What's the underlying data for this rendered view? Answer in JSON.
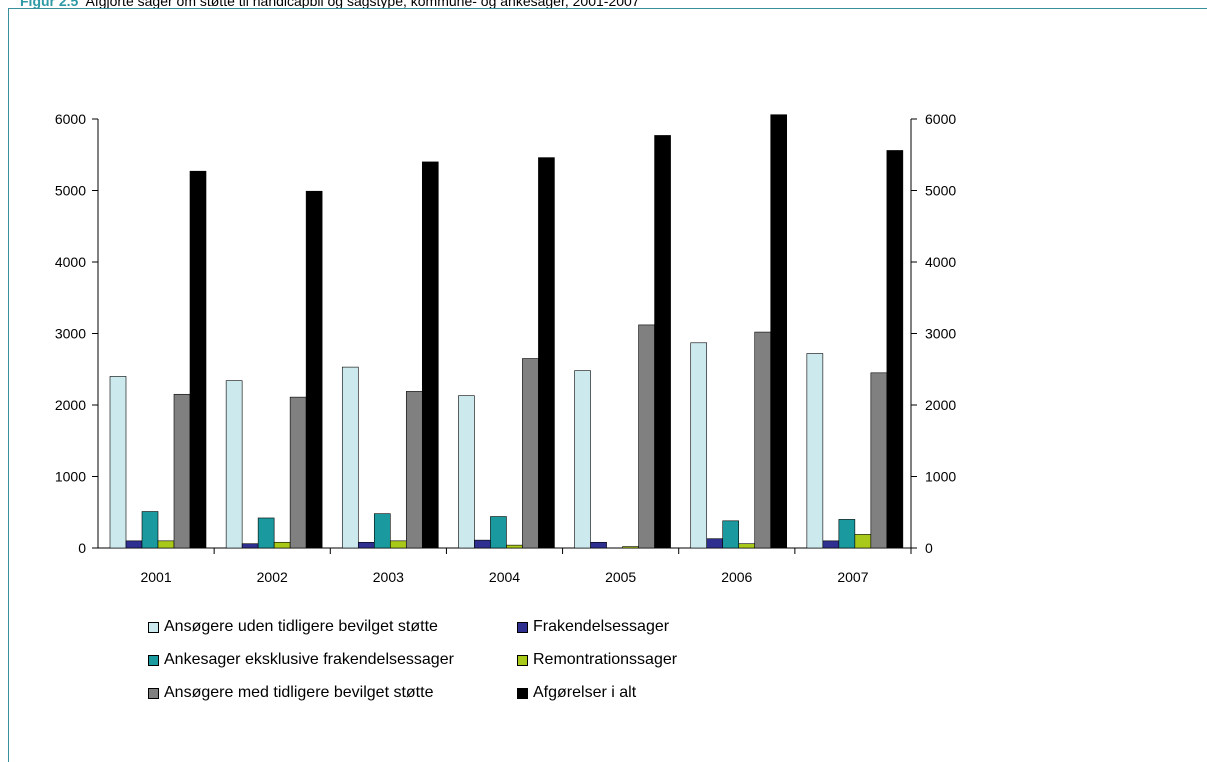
{
  "caption": {
    "figure_label": "Figur 2.5",
    "text": "Afgjorte sager om støtte til handicapbil og sagstype, kommune- og ankesager, 2001-2007"
  },
  "chart_data": {
    "type": "bar",
    "categories": [
      "2001",
      "2002",
      "2003",
      "2004",
      "2005",
      "2006",
      "2007"
    ],
    "series": [
      {
        "name": "Ansøgere uden tidligere bevilget støtte",
        "color": "#cce9ee",
        "values": [
          2400,
          2340,
          2530,
          2130,
          2480,
          2870,
          2720
        ]
      },
      {
        "name": "Frakendelsessager",
        "color": "#2f2f8f",
        "values": [
          100,
          60,
          80,
          110,
          80,
          130,
          100
        ]
      },
      {
        "name": "Ankesager eksklusive frakendelsessager",
        "color": "#1a9a9e",
        "values": [
          510,
          420,
          480,
          440,
          0,
          380,
          400
        ]
      },
      {
        "name": "Remontrationssager",
        "color": "#a8c81a",
        "values": [
          100,
          80,
          100,
          40,
          20,
          60,
          190
        ]
      },
      {
        "name": "Ansøgere med tidligere bevilget støtte",
        "color": "#808080",
        "values": [
          2150,
          2110,
          2190,
          2650,
          3120,
          3020,
          2450
        ]
      },
      {
        "name": "Afgørelser i alt",
        "color": "#000000",
        "values": [
          5270,
          4990,
          5400,
          5460,
          5770,
          6060,
          5560
        ]
      }
    ],
    "yticks": [
      "0",
      "1000",
      "2000",
      "3000",
      "4000",
      "5000",
      "6000"
    ],
    "ylim": [
      0,
      6000
    ],
    "grid": false,
    "legend_position": "bottom"
  },
  "legend": {
    "items": [
      {
        "label": "Ansøgere uden tidligere bevilget støtte",
        "color": "#cce9ee"
      },
      {
        "label": "Frakendelsessager",
        "color": "#2f2f8f"
      },
      {
        "label": "Ankesager eksklusive frakendelsessager",
        "color": "#1a9a9e"
      },
      {
        "label": "Remontrationssager",
        "color": "#a8c81a"
      },
      {
        "label": "Ansøgere med tidligere bevilget støtte",
        "color": "#808080"
      },
      {
        "label": "Afgørelser i alt",
        "color": "#000000"
      }
    ]
  }
}
